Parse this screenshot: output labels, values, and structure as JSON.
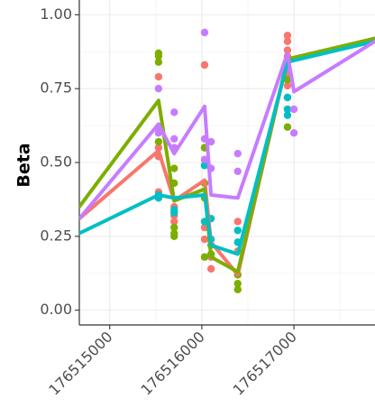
{
  "chart_data": {
    "type": "scatter",
    "title": "",
    "xlabel": "",
    "ylabel": "Beta",
    "xlim": [
      176514670,
      176517880
    ],
    "ylim": [
      -0.05,
      1.05
    ],
    "grid": true,
    "legend": "none",
    "x_ticks": [
      {
        "value": 176515000,
        "label": "176515000"
      },
      {
        "value": 176516000,
        "label": "176516000"
      },
      {
        "value": 176517000,
        "label": "176517000"
      }
    ],
    "y_ticks": [
      {
        "value": 0.0,
        "label": "0.00"
      },
      {
        "value": 0.25,
        "label": "0.25"
      },
      {
        "value": 0.5,
        "label": "0.50"
      },
      {
        "value": 0.75,
        "label": "0.75"
      },
      {
        "value": 1.0,
        "label": "1.00"
      }
    ],
    "series": [
      {
        "color": "#f8766d",
        "line": [
          [
            176514670,
            0.31
          ],
          [
            176515530,
            0.54
          ],
          [
            176515700,
            0.37
          ],
          [
            176516030,
            0.44
          ],
          [
            176516100,
            0.23
          ],
          [
            176516390,
            0.12
          ],
          [
            176516930,
            0.85
          ],
          [
            176517880,
            0.91
          ]
        ],
        "points": [
          [
            176515530,
            0.79
          ],
          [
            176515530,
            0.55
          ],
          [
            176515530,
            0.52
          ],
          [
            176515530,
            0.4
          ],
          [
            176515700,
            0.35
          ],
          [
            176515700,
            0.32
          ],
          [
            176515700,
            0.3
          ],
          [
            176516030,
            0.83
          ],
          [
            176516030,
            0.55
          ],
          [
            176516030,
            0.43
          ],
          [
            176516030,
            0.28
          ],
          [
            176516030,
            0.24
          ],
          [
            176516100,
            0.18
          ],
          [
            176516100,
            0.14
          ],
          [
            176516390,
            0.3
          ],
          [
            176516390,
            0.2
          ],
          [
            176516390,
            0.12
          ],
          [
            176516930,
            0.93
          ],
          [
            176516930,
            0.91
          ],
          [
            176516930,
            0.88
          ],
          [
            176516930,
            0.86
          ],
          [
            176516930,
            0.84
          ],
          [
            176516930,
            0.8
          ],
          [
            176516930,
            0.76
          ],
          [
            176516930,
            0.72
          ]
        ]
      },
      {
        "color": "#7cae00",
        "line": [
          [
            176514670,
            0.35
          ],
          [
            176515530,
            0.71
          ],
          [
            176515700,
            0.37
          ],
          [
            176516030,
            0.41
          ],
          [
            176516100,
            0.18
          ],
          [
            176516390,
            0.13
          ],
          [
            176516930,
            0.85
          ],
          [
            176517880,
            0.92
          ]
        ],
        "points": [
          [
            176515530,
            0.87
          ],
          [
            176515530,
            0.86
          ],
          [
            176515530,
            0.84
          ],
          [
            176515530,
            0.57
          ],
          [
            176515700,
            0.48
          ],
          [
            176515700,
            0.43
          ],
          [
            176515700,
            0.28
          ],
          [
            176515700,
            0.26
          ],
          [
            176515700,
            0.25
          ],
          [
            176516030,
            0.55
          ],
          [
            176516030,
            0.49
          ],
          [
            176516030,
            0.43
          ],
          [
            176516030,
            0.38
          ],
          [
            176516030,
            0.18
          ],
          [
            176516100,
            0.22
          ],
          [
            176516100,
            0.19
          ],
          [
            176516390,
            0.12
          ],
          [
            176516390,
            0.09
          ],
          [
            176516390,
            0.07
          ],
          [
            176516930,
            0.78
          ],
          [
            176516930,
            0.68
          ],
          [
            176516930,
            0.62
          ]
        ]
      },
      {
        "color": "#00bfc4",
        "line": [
          [
            176514670,
            0.26
          ],
          [
            176515530,
            0.39
          ],
          [
            176515700,
            0.38
          ],
          [
            176516030,
            0.39
          ],
          [
            176516100,
            0.22
          ],
          [
            176516390,
            0.19
          ],
          [
            176516930,
            0.84
          ],
          [
            176517880,
            0.91
          ]
        ],
        "points": [
          [
            176515530,
            0.39
          ],
          [
            176515530,
            0.38
          ],
          [
            176515700,
            0.34
          ],
          [
            176515700,
            0.33
          ],
          [
            176516030,
            0.49
          ],
          [
            176516030,
            0.3
          ],
          [
            176516100,
            0.31
          ],
          [
            176516100,
            0.24
          ],
          [
            176516390,
            0.27
          ],
          [
            176516390,
            0.23
          ],
          [
            176516930,
            0.72
          ],
          [
            176516930,
            0.68
          ],
          [
            176516930,
            0.66
          ]
        ]
      },
      {
        "color": "#c77cff",
        "line": [
          [
            176514670,
            0.31
          ],
          [
            176515530,
            0.63
          ],
          [
            176515700,
            0.53
          ],
          [
            176516030,
            0.69
          ],
          [
            176516100,
            0.39
          ],
          [
            176516390,
            0.38
          ],
          [
            176516930,
            0.87
          ],
          [
            176517000,
            0.74
          ],
          [
            176517880,
            0.91
          ]
        ],
        "points": [
          [
            176515530,
            0.75
          ],
          [
            176515530,
            0.62
          ],
          [
            176515530,
            0.6
          ],
          [
            176515700,
            0.67
          ],
          [
            176515700,
            0.58
          ],
          [
            176515700,
            0.55
          ],
          [
            176516030,
            0.94
          ],
          [
            176516030,
            0.58
          ],
          [
            176516030,
            0.51
          ],
          [
            176516100,
            0.57
          ],
          [
            176516100,
            0.48
          ],
          [
            176516390,
            0.53
          ],
          [
            176516390,
            0.47
          ],
          [
            176516930,
            0.82
          ],
          [
            176517000,
            0.68
          ],
          [
            176517000,
            0.6
          ]
        ]
      }
    ]
  }
}
